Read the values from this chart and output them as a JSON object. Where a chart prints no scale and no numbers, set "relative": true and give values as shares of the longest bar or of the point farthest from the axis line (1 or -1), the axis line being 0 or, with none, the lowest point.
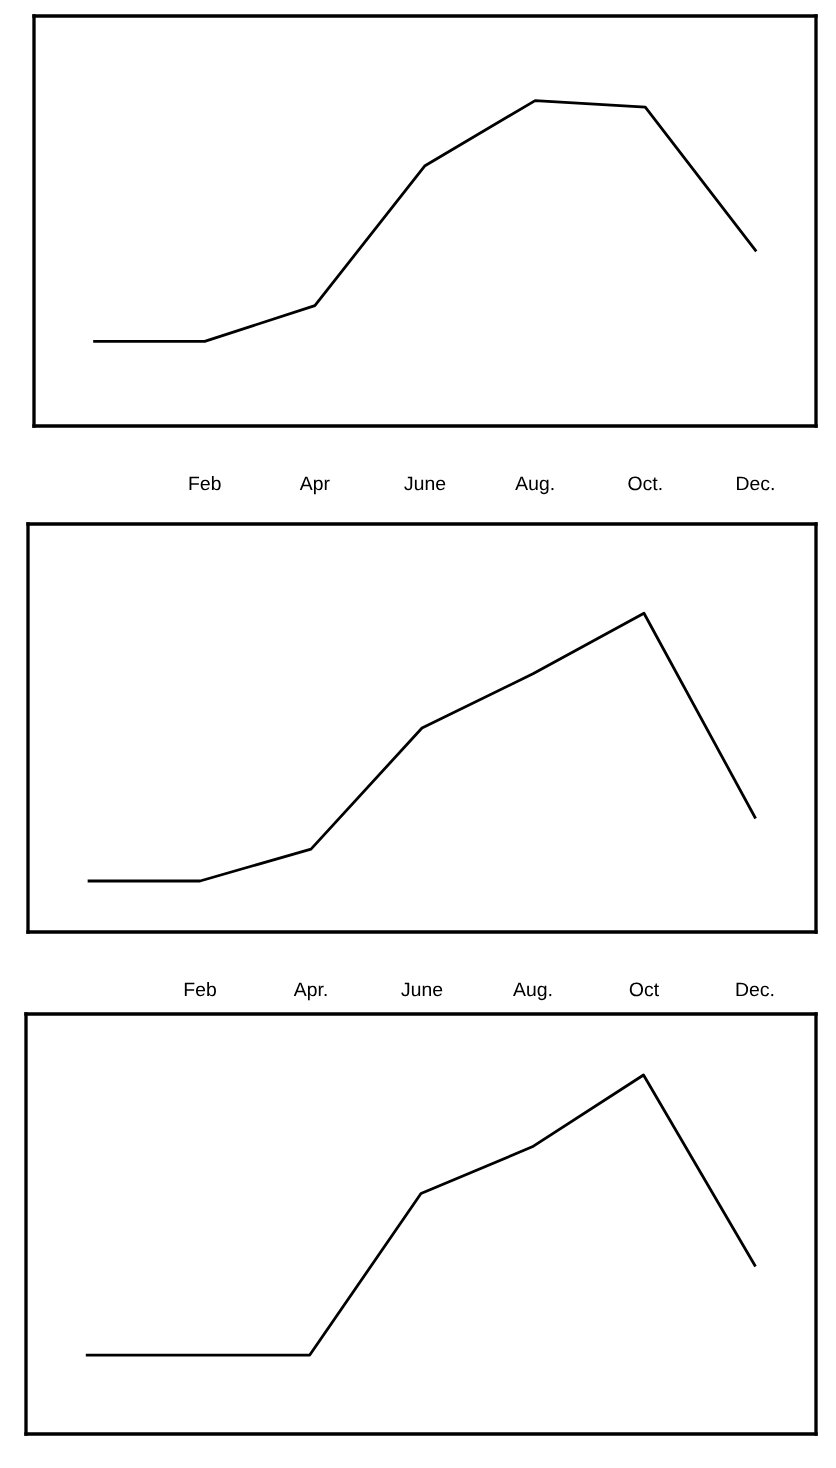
{
  "chart_data": [
    {
      "type": "line",
      "relative": true,
      "categories": [
        null,
        "Feb",
        "Apr",
        "June",
        "Aug.",
        "Oct.",
        "Dec."
      ],
      "values": [
        0.26,
        0.26,
        0.37,
        0.8,
        1,
        0.98,
        0.54
      ],
      "color": "#000000",
      "tick_labels": "x",
      "grid": false,
      "legend": false
    },
    {
      "type": "line",
      "relative": true,
      "categories": [
        null,
        "Feb",
        "Apr.",
        "June",
        "Aug.",
        "Oct",
        "Dec."
      ],
      "values": [
        0.16,
        0.16,
        0.26,
        0.64,
        0.81,
        1,
        0.36
      ],
      "color": "#000000",
      "tick_labels": "x",
      "grid": false,
      "legend": false
    },
    {
      "type": "line",
      "relative": true,
      "categories": [
        null,
        null,
        null,
        null,
        null,
        null,
        null
      ],
      "values": [
        0.22,
        0.22,
        0.22,
        0.67,
        0.8,
        1,
        0.47
      ],
      "color": "#000000",
      "tick_labels": false,
      "grid": false,
      "legend": false
    }
  ]
}
